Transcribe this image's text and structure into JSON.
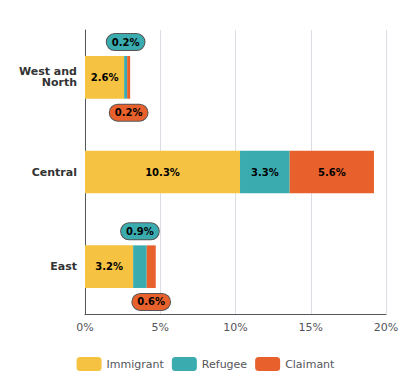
{
  "chart_data": {
    "type": "bar",
    "orientation": "horizontal",
    "stacked": true,
    "categories": [
      "West and\nNorth",
      "Central",
      "East"
    ],
    "series": [
      {
        "name": "Immigrant",
        "color": "#F5C242",
        "values": [
          2.6,
          10.3,
          3.2
        ],
        "value_labels": [
          "2.6%",
          "10.3%",
          "3.2%"
        ]
      },
      {
        "name": "Refugee",
        "color": "#3AACB0",
        "values": [
          0.2,
          3.3,
          0.9
        ],
        "value_labels": [
          "0.2%",
          "3.3%",
          "0.9%"
        ]
      },
      {
        "name": "Claimant",
        "color": "#E8612C",
        "values": [
          0.2,
          5.6,
          0.6
        ],
        "value_labels": [
          "0.2%",
          "5.6%",
          "0.6%"
        ]
      }
    ],
    "xlim": [
      0,
      20
    ],
    "xticks": [
      {
        "value": 0,
        "label": "0%"
      },
      {
        "value": 5,
        "label": "5%"
      },
      {
        "value": 10,
        "label": "10%"
      },
      {
        "value": 15,
        "label": "15%"
      },
      {
        "value": 20,
        "label": "20%"
      }
    ],
    "grid": true,
    "legend": "bottom",
    "data_labels": true
  }
}
